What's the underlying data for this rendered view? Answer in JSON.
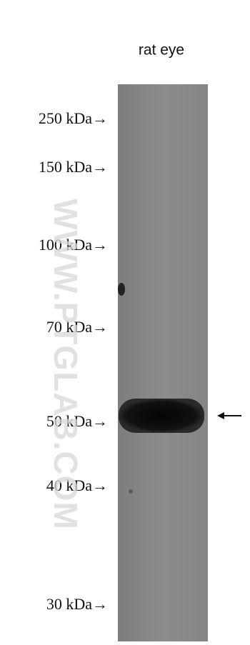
{
  "lane_label": "rat eye",
  "markers": [
    "250 kDa→",
    "150 kDa→",
    "100 kDa→",
    "70 kDa→",
    "50 kDa→",
    "40 kDa→",
    "30 kDa→"
  ],
  "watermark": "WWW.PTGLAB.COM"
}
